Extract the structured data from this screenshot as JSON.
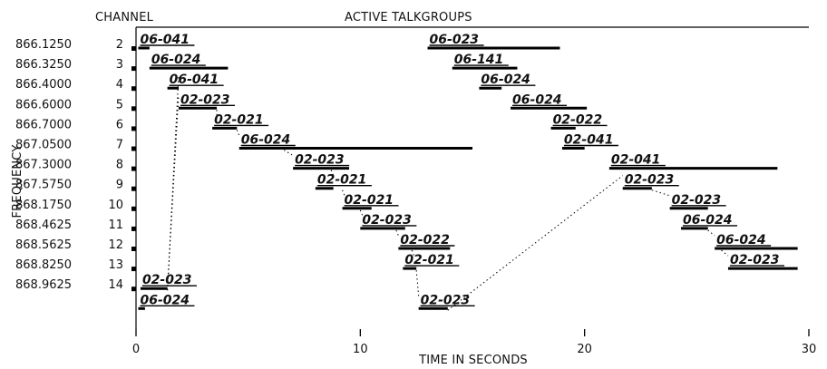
{
  "chart_data": {
    "type": "timeline",
    "header_channel": "CHANNEL",
    "title": "ACTIVE TALKGROUPS",
    "ylabel": "FREQUENCY",
    "xlabel": "TIME IN SECONDS",
    "xlim": [
      0,
      30
    ],
    "x_ticks": [
      0,
      10,
      20,
      30
    ],
    "x_tick_labels": [
      "0",
      "10",
      "20",
      "30"
    ],
    "grid": false,
    "channels": [
      {
        "frequency": "866.1250",
        "channel": "2"
      },
      {
        "frequency": "866.3250",
        "channel": "3"
      },
      {
        "frequency": "866.4000",
        "channel": "4"
      },
      {
        "frequency": "866.6000",
        "channel": "5"
      },
      {
        "frequency": "866.7000",
        "channel": "6"
      },
      {
        "frequency": "867.0500",
        "channel": "7"
      },
      {
        "frequency": "867.3000",
        "channel": "8"
      },
      {
        "frequency": "867.5750",
        "channel": "9"
      },
      {
        "frequency": "868.1750",
        "channel": "10"
      },
      {
        "frequency": "868.4625",
        "channel": "11"
      },
      {
        "frequency": "868.5625",
        "channel": "12"
      },
      {
        "frequency": "868.8250",
        "channel": "13"
      },
      {
        "frequency": "868.9625",
        "channel": "14"
      }
    ],
    "segments": [
      {
        "row": 0,
        "start": 0.1,
        "end": 0.6,
        "label": "06-041"
      },
      {
        "row": 0,
        "start": 13.0,
        "end": 18.9,
        "label": "06-023"
      },
      {
        "row": 1,
        "start": 0.6,
        "end": 4.1,
        "label": "06-024"
      },
      {
        "row": 1,
        "start": 14.1,
        "end": 17.0,
        "label": "06-141"
      },
      {
        "row": 2,
        "start": 1.4,
        "end": 1.9,
        "label": "06-041"
      },
      {
        "row": 2,
        "start": 15.3,
        "end": 16.3,
        "label": "06-024"
      },
      {
        "row": 3,
        "start": 1.9,
        "end": 3.6,
        "label": "02-023"
      },
      {
        "row": 3,
        "start": 16.7,
        "end": 20.1,
        "label": "06-024"
      },
      {
        "row": 4,
        "start": 3.4,
        "end": 4.5,
        "label": "02-021"
      },
      {
        "row": 4,
        "start": 18.5,
        "end": 19.6,
        "label": "02-022"
      },
      {
        "row": 5,
        "start": 4.6,
        "end": 15.0,
        "label": "06-024"
      },
      {
        "row": 5,
        "start": 19.0,
        "end": 20.0,
        "label": "02-041"
      },
      {
        "row": 6,
        "start": 7.0,
        "end": 9.5,
        "label": "02-023"
      },
      {
        "row": 6,
        "start": 21.1,
        "end": 28.6,
        "label": "02-041"
      },
      {
        "row": 7,
        "start": 8.0,
        "end": 8.8,
        "label": "02-021"
      },
      {
        "row": 7,
        "start": 21.7,
        "end": 23.0,
        "label": "02-023"
      },
      {
        "row": 8,
        "start": 9.2,
        "end": 10.5,
        "label": "02-021"
      },
      {
        "row": 8,
        "start": 23.8,
        "end": 25.5,
        "label": "02-023"
      },
      {
        "row": 9,
        "start": 10.0,
        "end": 12.0,
        "label": "02-023"
      },
      {
        "row": 9,
        "start": 24.3,
        "end": 25.5,
        "label": "06-024"
      },
      {
        "row": 10,
        "start": 11.7,
        "end": 14.0,
        "label": "02-022"
      },
      {
        "row": 10,
        "start": 25.8,
        "end": 29.5,
        "label": "06-024"
      },
      {
        "row": 11,
        "start": 11.9,
        "end": 12.5,
        "label": "02-021"
      },
      {
        "row": 11,
        "start": 26.4,
        "end": 29.5,
        "label": "02-023"
      },
      {
        "row": 12,
        "start": 0.2,
        "end": 1.4,
        "label": "02-023"
      },
      {
        "row": 13,
        "start": 0.1,
        "end": 0.4,
        "label": "06-024"
      },
      {
        "row": 13,
        "start": 12.6,
        "end": 13.9,
        "label": "02-023"
      }
    ],
    "handoffs": [
      [
        [
          1.4,
          12
        ],
        [
          1.9,
          3
        ]
      ],
      [
        [
          1.4,
          12
        ],
        [
          1.9,
          2
        ]
      ],
      [
        [
          3.6,
          3
        ],
        [
          3.6,
          4
        ]
      ],
      [
        [
          4.5,
          4
        ],
        [
          4.6,
          5
        ]
      ],
      [
        [
          6.6,
          5
        ],
        [
          7.0,
          6
        ]
      ],
      [
        [
          8.7,
          6
        ],
        [
          8.8,
          7
        ]
      ],
      [
        [
          9.2,
          7
        ],
        [
          9.3,
          8
        ]
      ],
      [
        [
          10.0,
          8
        ],
        [
          10.1,
          9
        ]
      ],
      [
        [
          11.6,
          9
        ],
        [
          11.7,
          10
        ]
      ],
      [
        [
          12.3,
          10
        ],
        [
          12.4,
          11
        ]
      ],
      [
        [
          12.5,
          11
        ],
        [
          12.6,
          13
        ]
      ],
      [
        [
          13.9,
          13
        ],
        [
          21.7,
          7
        ]
      ],
      [
        [
          23.0,
          7
        ],
        [
          23.8,
          8
        ]
      ],
      [
        [
          25.5,
          9
        ],
        [
          25.8,
          10
        ]
      ],
      [
        [
          26.1,
          10
        ],
        [
          26.4,
          11
        ]
      ]
    ]
  }
}
